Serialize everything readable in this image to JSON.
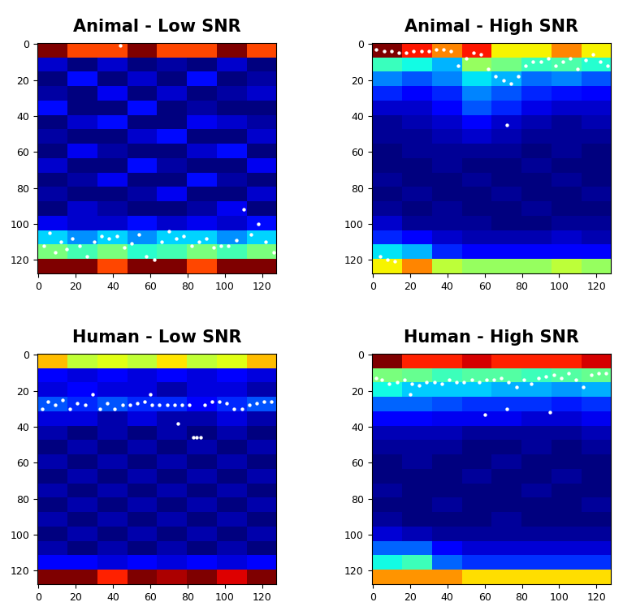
{
  "chart_data": [
    {
      "type": "heatmap",
      "title": "Animal - Low SNR",
      "xlim": [
        -0.5,
        127.5
      ],
      "ylim": [
        127.5,
        -0.5
      ],
      "xticks": [
        0,
        20,
        40,
        60,
        80,
        100,
        120
      ],
      "yticks": [
        0,
        20,
        40,
        60,
        80,
        100,
        120
      ],
      "cells": [
        [
          0.5,
          0.45,
          0.45,
          0.5,
          0.45,
          0.45,
          0.5,
          0.45
        ],
        [
          0.22,
          0.2,
          0.22,
          0.2,
          0.21,
          0.2,
          0.22,
          0.2
        ],
        [
          0.2,
          0.24,
          0.2,
          0.22,
          0.2,
          0.24,
          0.2,
          0.21
        ],
        [
          0.21,
          0.2,
          0.23,
          0.2,
          0.22,
          0.2,
          0.21,
          0.22
        ],
        [
          0.24,
          0.2,
          0.2,
          0.24,
          0.2,
          0.21,
          0.2,
          0.2
        ],
        [
          0.2,
          0.22,
          0.24,
          0.2,
          0.2,
          0.23,
          0.22,
          0.21
        ],
        [
          0.21,
          0.2,
          0.2,
          0.22,
          0.24,
          0.2,
          0.2,
          0.22
        ],
        [
          0.2,
          0.23,
          0.21,
          0.2,
          0.2,
          0.22,
          0.24,
          0.2
        ],
        [
          0.22,
          0.2,
          0.2,
          0.24,
          0.21,
          0.2,
          0.2,
          0.23
        ],
        [
          0.2,
          0.21,
          0.23,
          0.2,
          0.2,
          0.24,
          0.21,
          0.2
        ],
        [
          0.21,
          0.2,
          0.2,
          0.21,
          0.23,
          0.2,
          0.2,
          0.22
        ],
        [
          0.2,
          0.22,
          0.21,
          0.2,
          0.2,
          0.21,
          0.23,
          0.2
        ],
        [
          0.23,
          0.22,
          0.22,
          0.24,
          0.22,
          0.23,
          0.22,
          0.24
        ],
        [
          0.3,
          0.28,
          0.3,
          0.28,
          0.3,
          0.3,
          0.28,
          0.3
        ],
        [
          0.35,
          0.33,
          0.35,
          0.32,
          0.33,
          0.35,
          0.33,
          0.35
        ],
        [
          0.5,
          0.5,
          0.45,
          0.5,
          0.5,
          0.45,
          0.5,
          0.5
        ]
      ],
      "points": {
        "x": [
          3,
          6,
          9,
          12,
          15,
          18,
          22,
          26,
          30,
          34,
          38,
          42,
          46,
          50,
          54,
          58,
          62,
          66,
          70,
          74,
          78,
          82,
          86,
          90,
          94,
          98,
          102,
          106,
          110,
          114,
          118,
          122,
          126,
          44
        ],
        "y": [
          112,
          105,
          116,
          110,
          114,
          108,
          112,
          118,
          110,
          107,
          108,
          107,
          113,
          111,
          106,
          118,
          120,
          110,
          104,
          108,
          107,
          112,
          110,
          108,
          113,
          112,
          112,
          109,
          92,
          106,
          100,
          110,
          116,
          1
        ]
      },
      "color": "#ffffff",
      "marker": "o"
    },
    {
      "type": "heatmap",
      "title": "Animal - High SNR",
      "xlim": [
        -0.5,
        127.5
      ],
      "ylim": [
        127.5,
        -0.5
      ],
      "xticks": [
        0,
        20,
        40,
        60,
        80,
        100,
        120
      ],
      "yticks": [
        0,
        20,
        40,
        60,
        80,
        100,
        120
      ],
      "cells": [
        [
          0.6,
          0.55,
          0.5,
          0.55,
          0.45,
          0.45,
          0.5,
          0.45
        ],
        [
          0.35,
          0.33,
          0.3,
          0.4,
          0.38,
          0.35,
          0.36,
          0.34
        ],
        [
          0.28,
          0.26,
          0.28,
          0.32,
          0.3,
          0.27,
          0.28,
          0.26
        ],
        [
          0.24,
          0.22,
          0.24,
          0.28,
          0.26,
          0.24,
          0.23,
          0.22
        ],
        [
          0.2,
          0.2,
          0.22,
          0.26,
          0.24,
          0.21,
          0.2,
          0.2
        ],
        [
          0.18,
          0.19,
          0.2,
          0.22,
          0.2,
          0.19,
          0.18,
          0.19
        ],
        [
          0.18,
          0.18,
          0.19,
          0.2,
          0.19,
          0.18,
          0.18,
          0.18
        ],
        [
          0.17,
          0.18,
          0.18,
          0.18,
          0.18,
          0.17,
          0.18,
          0.17
        ],
        [
          0.17,
          0.17,
          0.18,
          0.17,
          0.17,
          0.18,
          0.17,
          0.17
        ],
        [
          0.18,
          0.17,
          0.17,
          0.18,
          0.17,
          0.17,
          0.18,
          0.17
        ],
        [
          0.17,
          0.18,
          0.17,
          0.17,
          0.18,
          0.17,
          0.17,
          0.18
        ],
        [
          0.18,
          0.17,
          0.18,
          0.17,
          0.17,
          0.18,
          0.17,
          0.17
        ],
        [
          0.2,
          0.18,
          0.18,
          0.18,
          0.17,
          0.17,
          0.18,
          0.18
        ],
        [
          0.24,
          0.22,
          0.2,
          0.19,
          0.19,
          0.19,
          0.2,
          0.19
        ],
        [
          0.32,
          0.3,
          0.24,
          0.22,
          0.22,
          0.22,
          0.22,
          0.22
        ],
        [
          0.45,
          0.5,
          0.42,
          0.4,
          0.4,
          0.4,
          0.42,
          0.4
        ]
      ],
      "points": {
        "x": [
          2,
          6,
          10,
          14,
          18,
          22,
          26,
          30,
          34,
          38,
          42,
          46,
          50,
          54,
          58,
          62,
          66,
          70,
          74,
          78,
          82,
          86,
          90,
          94,
          98,
          102,
          106,
          110,
          114,
          118,
          122,
          126,
          72,
          4,
          8,
          12
        ],
        "y": [
          3,
          4,
          4,
          5,
          5,
          4,
          4,
          4,
          3,
          3,
          4,
          12,
          8,
          5,
          6,
          14,
          18,
          20,
          22,
          18,
          12,
          10,
          10,
          8,
          12,
          10,
          8,
          14,
          9,
          6,
          10,
          12,
          45,
          118,
          120,
          121
        ]
      },
      "color": "#ffffff",
      "marker": "o"
    },
    {
      "type": "heatmap",
      "title": "Human - Low SNR",
      "xlim": [
        -0.5,
        127.5
      ],
      "ylim": [
        127.5,
        -0.5
      ],
      "xticks": [
        0,
        20,
        40,
        60,
        80,
        100,
        120
      ],
      "yticks": [
        0,
        20,
        40,
        60,
        80,
        100,
        120
      ],
      "cells": [
        [
          0.38,
          0.35,
          0.36,
          0.35,
          0.37,
          0.35,
          0.36,
          0.38
        ],
        [
          0.24,
          0.23,
          0.24,
          0.23,
          0.24,
          0.23,
          0.24,
          0.23
        ],
        [
          0.23,
          0.24,
          0.23,
          0.23,
          0.22,
          0.23,
          0.23,
          0.22
        ],
        [
          0.26,
          0.25,
          0.26,
          0.25,
          0.25,
          0.24,
          0.25,
          0.26
        ],
        [
          0.23,
          0.23,
          0.22,
          0.23,
          0.22,
          0.22,
          0.23,
          0.22
        ],
        [
          0.22,
          0.21,
          0.22,
          0.21,
          0.22,
          0.21,
          0.22,
          0.21
        ],
        [
          0.21,
          0.22,
          0.21,
          0.22,
          0.21,
          0.22,
          0.21,
          0.22
        ],
        [
          0.22,
          0.21,
          0.22,
          0.21,
          0.22,
          0.21,
          0.22,
          0.21
        ],
        [
          0.21,
          0.22,
          0.21,
          0.22,
          0.21,
          0.22,
          0.21,
          0.22
        ],
        [
          0.22,
          0.21,
          0.22,
          0.21,
          0.22,
          0.21,
          0.22,
          0.21
        ],
        [
          0.21,
          0.22,
          0.21,
          0.22,
          0.21,
          0.22,
          0.21,
          0.22
        ],
        [
          0.22,
          0.21,
          0.22,
          0.21,
          0.22,
          0.21,
          0.22,
          0.21
        ],
        [
          0.21,
          0.22,
          0.21,
          0.22,
          0.21,
          0.22,
          0.21,
          0.22
        ],
        [
          0.22,
          0.21,
          0.22,
          0.21,
          0.22,
          0.21,
          0.22,
          0.21
        ],
        [
          0.24,
          0.24,
          0.23,
          0.24,
          0.23,
          0.24,
          0.23,
          0.24
        ],
        [
          0.45,
          0.45,
          0.42,
          0.45,
          0.44,
          0.45,
          0.43,
          0.45
        ]
      ],
      "points": {
        "x": [
          2,
          5,
          9,
          13,
          17,
          21,
          25,
          29,
          33,
          37,
          41,
          45,
          49,
          53,
          57,
          61,
          65,
          69,
          73,
          77,
          81,
          85,
          89,
          93,
          97,
          101,
          105,
          109,
          113,
          117,
          121,
          125,
          75,
          83,
          87,
          60
        ],
        "y": [
          30,
          26,
          28,
          25,
          30,
          27,
          28,
          22,
          30,
          27,
          30,
          28,
          28,
          27,
          26,
          28,
          28,
          28,
          28,
          28,
          28,
          46,
          28,
          26,
          26,
          27,
          30,
          30,
          28,
          27,
          26,
          26,
          38,
          46,
          46,
          22
        ]
      },
      "color": "#ffffff",
      "marker": "o"
    },
    {
      "type": "heatmap",
      "title": "Human - High SNR",
      "xlim": [
        -0.5,
        127.5
      ],
      "ylim": [
        127.5,
        -0.5
      ],
      "xticks": [
        0,
        20,
        40,
        60,
        80,
        100,
        120
      ],
      "yticks": [
        0,
        20,
        40,
        60,
        80,
        100,
        120
      ],
      "cells": [
        [
          0.55,
          0.5,
          0.5,
          0.52,
          0.5,
          0.5,
          0.5,
          0.52
        ],
        [
          0.35,
          0.34,
          0.32,
          0.33,
          0.33,
          0.32,
          0.33,
          0.34
        ],
        [
          0.3,
          0.28,
          0.28,
          0.28,
          0.27,
          0.27,
          0.26,
          0.27
        ],
        [
          0.24,
          0.24,
          0.23,
          0.22,
          0.22,
          0.22,
          0.21,
          0.22
        ],
        [
          0.2,
          0.2,
          0.19,
          0.19,
          0.19,
          0.18,
          0.18,
          0.19
        ],
        [
          0.17,
          0.17,
          0.17,
          0.16,
          0.16,
          0.16,
          0.16,
          0.17
        ],
        [
          0.16,
          0.16,
          0.16,
          0.15,
          0.15,
          0.16,
          0.15,
          0.16
        ],
        [
          0.15,
          0.16,
          0.15,
          0.15,
          0.16,
          0.15,
          0.15,
          0.15
        ],
        [
          0.15,
          0.15,
          0.15,
          0.16,
          0.15,
          0.15,
          0.16,
          0.15
        ],
        [
          0.16,
          0.15,
          0.15,
          0.15,
          0.15,
          0.16,
          0.15,
          0.15
        ],
        [
          0.15,
          0.15,
          0.16,
          0.15,
          0.15,
          0.15,
          0.15,
          0.16
        ],
        [
          0.16,
          0.15,
          0.15,
          0.15,
          0.16,
          0.15,
          0.15,
          0.15
        ],
        [
          0.18,
          0.17,
          0.16,
          0.16,
          0.16,
          0.16,
          0.16,
          0.16
        ],
        [
          0.24,
          0.24,
          0.2,
          0.18,
          0.18,
          0.18,
          0.18,
          0.18
        ],
        [
          0.3,
          0.32,
          0.24,
          0.22,
          0.22,
          0.22,
          0.22,
          0.22
        ],
        [
          0.45,
          0.45,
          0.45,
          0.42,
          0.42,
          0.42,
          0.42,
          0.42
        ]
      ],
      "points": {
        "x": [
          2,
          5,
          9,
          13,
          17,
          21,
          25,
          29,
          33,
          37,
          41,
          45,
          49,
          53,
          57,
          61,
          65,
          69,
          73,
          77,
          81,
          85,
          89,
          93,
          97,
          101,
          105,
          109,
          113,
          117,
          121,
          125,
          60,
          72,
          95,
          20
        ],
        "y": [
          13,
          14,
          16,
          15,
          14,
          16,
          17,
          15,
          15,
          16,
          14,
          15,
          15,
          14,
          15,
          14,
          14,
          13,
          15,
          18,
          14,
          16,
          13,
          12,
          11,
          13,
          10,
          14,
          18,
          11,
          10,
          10,
          33,
          30,
          32,
          22
        ]
      },
      "color": "#ffffff",
      "marker": "o"
    }
  ]
}
